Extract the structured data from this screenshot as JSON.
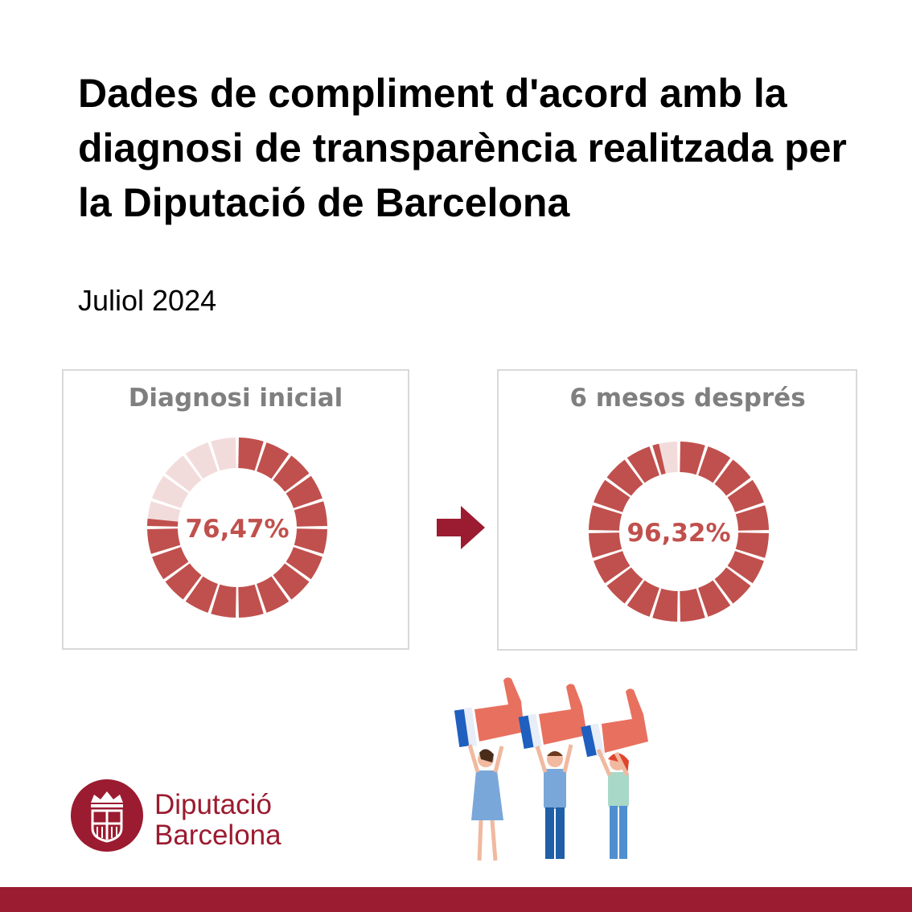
{
  "header": {
    "title": "Dades de compliment d'acord amb la diagnosi de transparència realitzada per la Diputació de Barcelona",
    "subtitle": "Juliol 2024"
  },
  "colors": {
    "filled": "#c0504d",
    "empty": "#f2dcdb",
    "text": "#c0504d",
    "panel_title": "#7f7f7f",
    "brand": "#9b1b30",
    "arrow": "#9b1b30"
  },
  "chart_data": [
    {
      "type": "pie",
      "style": "segmented-donut",
      "title": "Diagnosi inicial",
      "center_label": "76,47%",
      "value": 76.47,
      "total": 100
    },
    {
      "type": "pie",
      "style": "segmented-donut",
      "title": "6 mesos després",
      "center_label": "96,32%",
      "value": 96.32,
      "total": 100
    }
  ],
  "arrow_icon": "right-arrow-icon",
  "illustration_icon": "people-holding-thumbs-up-icon",
  "logo": {
    "icon": "diputacio-barcelona-seal-icon",
    "line1": "Diputació",
    "line2": "Barcelona"
  }
}
